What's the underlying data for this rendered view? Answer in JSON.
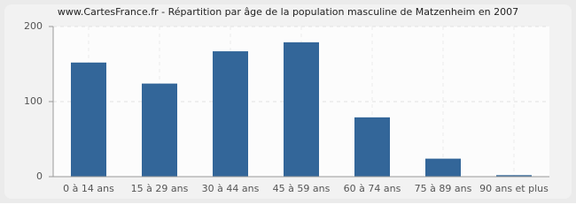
{
  "chart_data": {
    "type": "bar",
    "title": "www.CartesFrance.fr - Répartition par âge de la population masculine de Matzenheim en 2007",
    "categories": [
      "0 à 14 ans",
      "15 à 29 ans",
      "30 à 44 ans",
      "45 à 59 ans",
      "60 à 74 ans",
      "75 à 89 ans",
      "90 ans et plus"
    ],
    "values": [
      152,
      124,
      167,
      179,
      79,
      24,
      2
    ],
    "color": "#336699",
    "ylim": [
      0,
      200
    ],
    "yticks": [
      0,
      100,
      200
    ],
    "grid": true
  }
}
